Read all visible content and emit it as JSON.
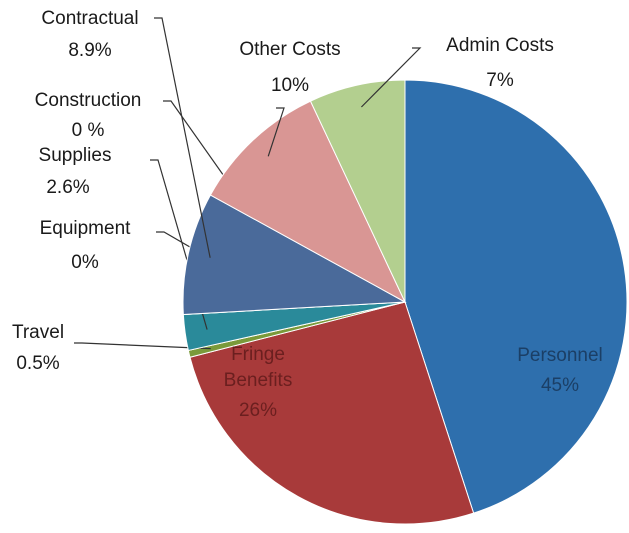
{
  "chart_data": {
    "type": "pie",
    "categories": [
      "Personnel",
      "Fringe Benefits",
      "Travel",
      "Equipment",
      "Supplies",
      "Construction",
      "Contractual",
      "Other Costs",
      "Admin Costs"
    ],
    "values": [
      45,
      26,
      0.5,
      0,
      2.6,
      0,
      8.9,
      10,
      7
    ],
    "value_labels": [
      "45%",
      "26%",
      "0.5%",
      "0%",
      "2.6%",
      "0 %",
      "8.9%",
      "10%",
      "7%"
    ],
    "colors": [
      "#2e6fad",
      "#a83a3a",
      "#7a9a3a",
      "#6a4a8a",
      "#2a8a9a",
      "#d08030",
      "#4a6a9a",
      "#d99694",
      "#b3cf8f"
    ]
  }
}
